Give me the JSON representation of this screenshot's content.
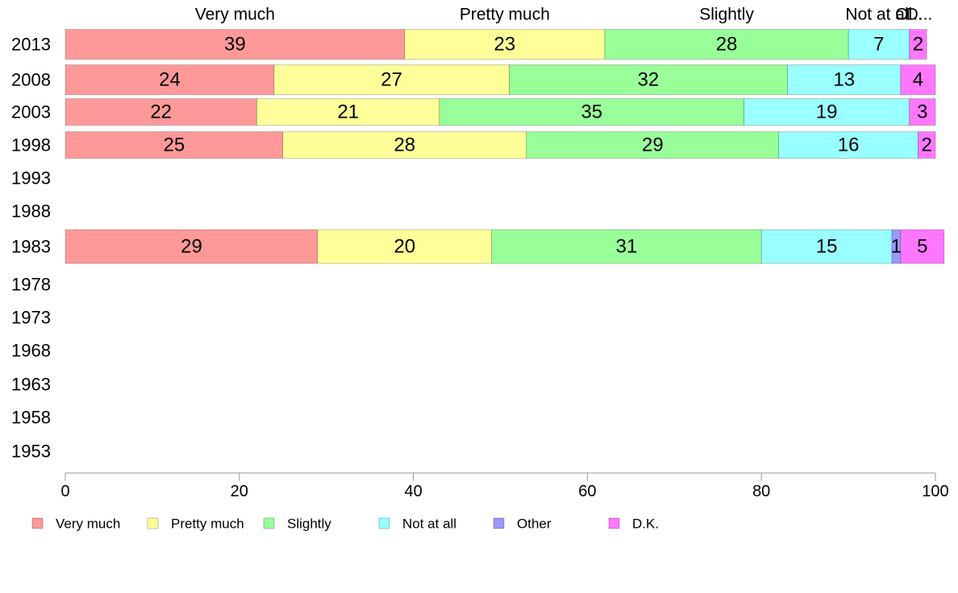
{
  "chart_data": {
    "type": "bar",
    "orientation": "horizontal",
    "stacked": true,
    "title": "",
    "xlabel": "",
    "ylabel": "",
    "xlim": [
      0,
      100
    ],
    "x_ticks": [
      "0",
      "20",
      "40",
      "60",
      "80",
      "100"
    ],
    "categories": [
      "2013",
      "2008",
      "2003",
      "1998",
      "1993",
      "1988",
      "1983",
      "1978",
      "1973",
      "1968",
      "1963",
      "1958",
      "1953"
    ],
    "series": [
      {
        "name": "Very much",
        "color": "#ff9999",
        "values": [
          39,
          24,
          22,
          25,
          null,
          null,
          29,
          null,
          null,
          null,
          null,
          null,
          null
        ]
      },
      {
        "name": "Pretty much",
        "color": "#ffff99",
        "values": [
          23,
          27,
          21,
          28,
          null,
          null,
          20,
          null,
          null,
          null,
          null,
          null,
          null
        ]
      },
      {
        "name": "Slightly",
        "color": "#99ff99",
        "values": [
          28,
          32,
          35,
          29,
          null,
          null,
          31,
          null,
          null,
          null,
          null,
          null,
          null
        ]
      },
      {
        "name": "Not at all",
        "color": "#99ffff",
        "values": [
          7,
          13,
          19,
          16,
          null,
          null,
          15,
          null,
          null,
          null,
          null,
          null,
          null
        ]
      },
      {
        "name": "Other",
        "color": "#9999ff",
        "values": [
          0,
          0,
          0,
          0,
          null,
          null,
          1,
          null,
          null,
          null,
          null,
          null,
          null
        ]
      },
      {
        "name": "D.K.",
        "color": "#ff77ff",
        "values": [
          2,
          4,
          3,
          2,
          null,
          null,
          5,
          null,
          null,
          null,
          null,
          null,
          null
        ]
      }
    ],
    "top_labels": [
      "Very much",
      "Pretty much",
      "Slightly",
      "Not at all",
      "O...",
      "D..."
    ],
    "legend": [
      "Very much",
      "Pretty much",
      "Slightly",
      "Not at all",
      "Other",
      "D.K."
    ],
    "legend_position": "bottom",
    "grid": false
  }
}
